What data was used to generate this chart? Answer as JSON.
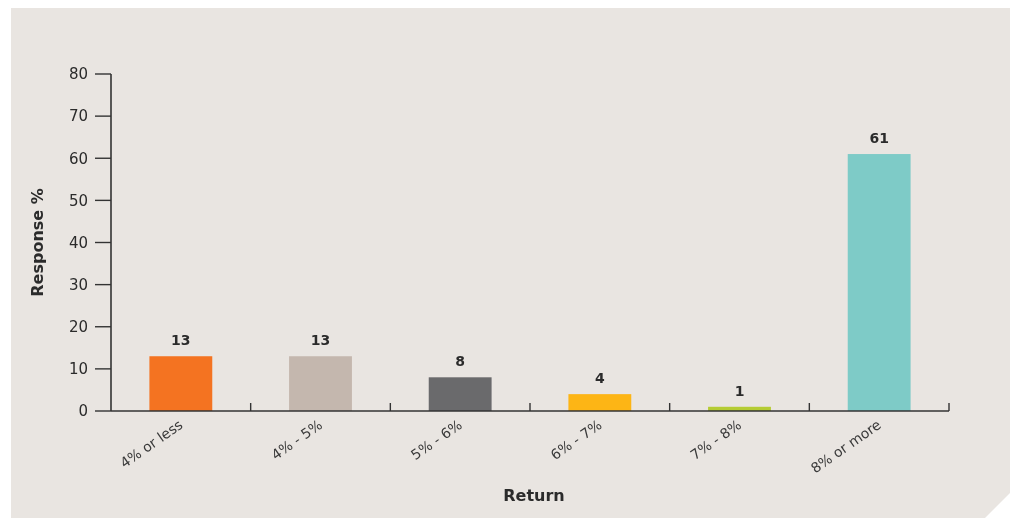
{
  "chart_data": {
    "type": "bar",
    "xlabel": "Return",
    "ylabel": "Response %",
    "categories": [
      "4% or less",
      "4% - 5%",
      "5% - 6%",
      "6% - 7%",
      "7% - 8%",
      "8% or more"
    ],
    "values": [
      13,
      13,
      8,
      4,
      1,
      61
    ],
    "colors": [
      "#f47321",
      "#c4b7ae",
      "#6a6a6c",
      "#fdb515",
      "#b5cc34",
      "#7ecbc7"
    ],
    "ylim": [
      0,
      80
    ],
    "yticks": [
      0,
      10,
      20,
      30,
      40,
      50,
      60,
      70,
      80
    ],
    "data_labels": true
  }
}
